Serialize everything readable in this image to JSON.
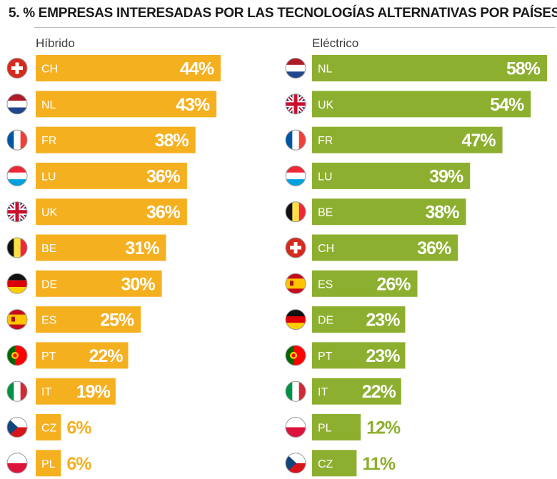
{
  "title": "5. % EMPRESAS INTERESADAS POR LAS TECNOLOGÍAS ALTERNATIVAS POR PAÍSES",
  "colors": {
    "hybrid": "#f5b020",
    "electric": "#8daf2f"
  },
  "chart_data": [
    {
      "type": "bar",
      "orientation": "horizontal",
      "subtitle": "Híbrido",
      "categories": [
        "CH",
        "NL",
        "FR",
        "LU",
        "UK",
        "BE",
        "DE",
        "ES",
        "PT",
        "IT",
        "CZ",
        "PL"
      ],
      "values": [
        44,
        43,
        38,
        36,
        36,
        31,
        30,
        25,
        22,
        19,
        6,
        6
      ],
      "labels": [
        "44%",
        "43%",
        "38%",
        "36%",
        "36%",
        "31%",
        "30%",
        "25%",
        "22%",
        "19%",
        "6%",
        "6%"
      ],
      "flags": [
        "swiss-flag-icon",
        "netherlands-flag-icon",
        "france-flag-icon",
        "luxembourg-flag-icon",
        "uk-flag-icon",
        "belgium-flag-icon",
        "germany-flag-icon",
        "spain-flag-icon",
        "portugal-flag-icon",
        "italy-flag-icon",
        "czech-flag-icon",
        "poland-flag-icon"
      ],
      "color": "#f5b020",
      "xlim": [
        0,
        44
      ]
    },
    {
      "type": "bar",
      "orientation": "horizontal",
      "subtitle": "Eléctrico",
      "categories": [
        "NL",
        "UK",
        "FR",
        "LU",
        "BE",
        "CH",
        "ES",
        "DE",
        "PT",
        "IT",
        "PL",
        "CZ"
      ],
      "values": [
        58,
        54,
        47,
        39,
        38,
        36,
        26,
        23,
        23,
        22,
        12,
        11
      ],
      "labels": [
        "58%",
        "54%",
        "47%",
        "39%",
        "38%",
        "36%",
        "26%",
        "23%",
        "23%",
        "22%",
        "12%",
        "11%"
      ],
      "flags": [
        "netherlands-flag-icon",
        "uk-flag-icon",
        "france-flag-icon",
        "luxembourg-flag-icon",
        "belgium-flag-icon",
        "swiss-flag-icon",
        "spain-flag-icon",
        "germany-flag-icon",
        "portugal-flag-icon",
        "italy-flag-icon",
        "poland-flag-icon",
        "czech-flag-icon"
      ],
      "color": "#8daf2f",
      "xlim": [
        0,
        58
      ]
    }
  ]
}
